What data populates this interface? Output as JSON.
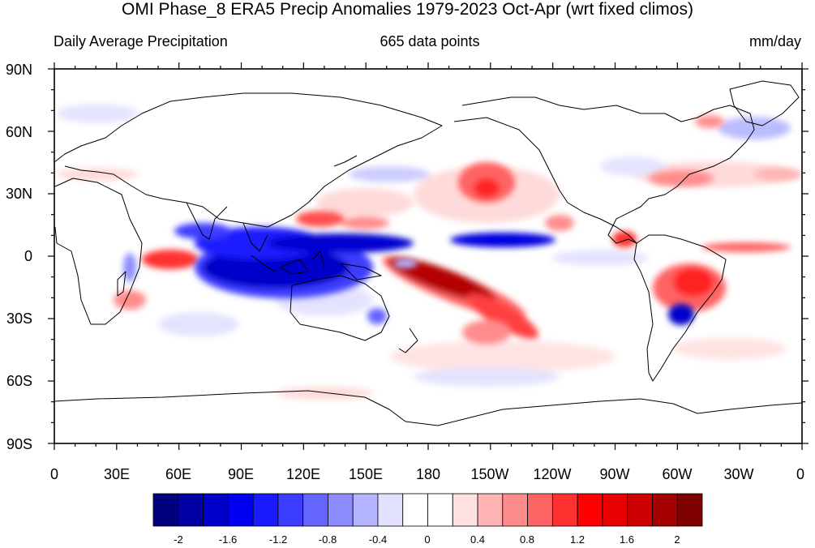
{
  "title": "OMI Phase_8 ERA5 Precip Anomalies 1979-2023 Oct-Apr (wrt fixed climos)",
  "left_subtitle": "Daily Average Precipitation",
  "center_subtitle": "665 data points",
  "right_subtitle": "mm/day",
  "lat_labels": [
    "90N",
    "60N",
    "30N",
    "0",
    "30S",
    "60S",
    "90S"
  ],
  "lon_labels": [
    "0",
    "30E",
    "60E",
    "90E",
    "120E",
    "150E",
    "180",
    "150W",
    "120W",
    "90W",
    "60W",
    "30W",
    "0"
  ],
  "colorbar": {
    "colors": [
      "#00007f",
      "#0000a5",
      "#0000cb",
      "#0000f0",
      "#1a1aff",
      "#3c3cff",
      "#6464ff",
      "#8c8cff",
      "#b4b4ff",
      "#e1e1ff",
      "#ffffff",
      "#ffffff",
      "#ffe1e1",
      "#ffb4b4",
      "#ff8c8c",
      "#ff6464",
      "#ff3232",
      "#ff0000",
      "#e60000",
      "#cc0000",
      "#a50000",
      "#7f0000"
    ],
    "tick_labels": [
      "-2",
      "-1.6",
      "-1.2",
      "-0.8",
      "-0.4",
      "0",
      "0.4",
      "0.8",
      "1.2",
      "1.6",
      "2"
    ]
  }
}
